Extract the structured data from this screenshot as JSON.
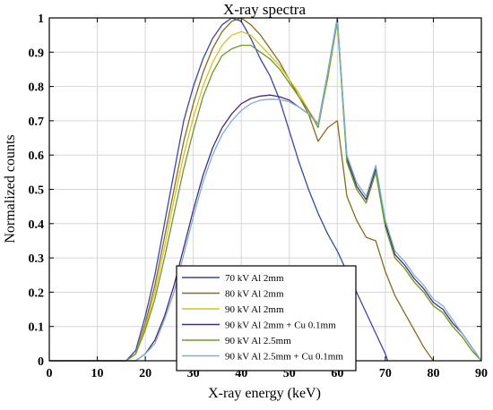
{
  "chart_data": {
    "type": "line",
    "title": "X-ray spectra",
    "xlabel": "X-ray energy (keV)",
    "ylabel": "Normalized counts",
    "xlim": [
      0,
      90
    ],
    "ylim": [
      0,
      1
    ],
    "xticks": [
      "0",
      "10",
      "20",
      "30",
      "40",
      "50",
      "60",
      "70",
      "80",
      "90"
    ],
    "yticks": [
      "0",
      "0.1",
      "0.2",
      "0.3",
      "0.4",
      "0.5",
      "0.6",
      "0.7",
      "0.8",
      "0.9",
      "1"
    ],
    "grid": true,
    "legend_position": "bottom-center",
    "series": [
      {
        "name": "70 kV Al 2mm",
        "color": "#3a46a8",
        "points": [
          [
            0,
            0
          ],
          [
            16,
            0
          ],
          [
            18,
            0.03
          ],
          [
            20,
            0.13
          ],
          [
            22,
            0.25
          ],
          [
            24,
            0.4
          ],
          [
            26,
            0.55
          ],
          [
            28,
            0.7
          ],
          [
            30,
            0.8
          ],
          [
            32,
            0.88
          ],
          [
            34,
            0.94
          ],
          [
            36,
            0.98
          ],
          [
            38,
            1.0
          ],
          [
            40,
            0.99
          ],
          [
            42,
            0.94
          ],
          [
            44,
            0.88
          ],
          [
            46,
            0.83
          ],
          [
            48,
            0.76
          ],
          [
            50,
            0.67
          ],
          [
            52,
            0.58
          ],
          [
            54,
            0.5
          ],
          [
            56,
            0.43
          ],
          [
            58,
            0.37
          ],
          [
            60,
            0.32
          ],
          [
            62,
            0.26
          ],
          [
            64,
            0.2
          ],
          [
            66,
            0.14
          ],
          [
            68,
            0.08
          ],
          [
            70,
            0.02
          ],
          [
            70.5,
            0
          ]
        ]
      },
      {
        "name": "80 kV Al 2mm",
        "color": "#8a6a1e",
        "points": [
          [
            0,
            0
          ],
          [
            16,
            0
          ],
          [
            18,
            0.02
          ],
          [
            20,
            0.11
          ],
          [
            22,
            0.22
          ],
          [
            24,
            0.36
          ],
          [
            26,
            0.5
          ],
          [
            28,
            0.64
          ],
          [
            30,
            0.75
          ],
          [
            32,
            0.84
          ],
          [
            34,
            0.91
          ],
          [
            36,
            0.96
          ],
          [
            38,
            0.99
          ],
          [
            40,
            1.0
          ],
          [
            42,
            0.98
          ],
          [
            44,
            0.95
          ],
          [
            46,
            0.91
          ],
          [
            48,
            0.87
          ],
          [
            50,
            0.82
          ],
          [
            52,
            0.77
          ],
          [
            54,
            0.72
          ],
          [
            56,
            0.64
          ],
          [
            58,
            0.68
          ],
          [
            60,
            0.7
          ],
          [
            62,
            0.48
          ],
          [
            64,
            0.41
          ],
          [
            66,
            0.36
          ],
          [
            68,
            0.35
          ],
          [
            70,
            0.26
          ],
          [
            72,
            0.19
          ],
          [
            74,
            0.14
          ],
          [
            76,
            0.09
          ],
          [
            78,
            0.04
          ],
          [
            80,
            0
          ]
        ]
      },
      {
        "name": "90 kV Al 2mm",
        "color": "#d8c020",
        "points": [
          [
            0,
            0
          ],
          [
            16,
            0
          ],
          [
            18,
            0.02
          ],
          [
            20,
            0.1
          ],
          [
            22,
            0.2
          ],
          [
            24,
            0.33
          ],
          [
            26,
            0.47
          ],
          [
            28,
            0.6
          ],
          [
            30,
            0.71
          ],
          [
            32,
            0.8
          ],
          [
            34,
            0.87
          ],
          [
            36,
            0.92
          ],
          [
            38,
            0.95
          ],
          [
            40,
            0.96
          ],
          [
            42,
            0.95
          ],
          [
            44,
            0.92
          ],
          [
            46,
            0.89
          ],
          [
            48,
            0.86
          ],
          [
            50,
            0.82
          ],
          [
            52,
            0.78
          ],
          [
            54,
            0.73
          ],
          [
            56,
            0.69
          ],
          [
            58,
            0.82
          ],
          [
            60,
            0.99
          ],
          [
            62,
            0.58
          ],
          [
            64,
            0.5
          ],
          [
            66,
            0.46
          ],
          [
            68,
            0.55
          ],
          [
            70,
            0.39
          ],
          [
            72,
            0.3
          ],
          [
            74,
            0.27
          ],
          [
            76,
            0.23
          ],
          [
            78,
            0.2
          ],
          [
            80,
            0.16
          ],
          [
            82,
            0.14
          ],
          [
            84,
            0.1
          ],
          [
            86,
            0.07
          ],
          [
            88,
            0.03
          ],
          [
            90,
            0
          ]
        ]
      },
      {
        "name": "90 kV Al 2mm + Cu 0.1mm",
        "color": "#4a2a78",
        "points": [
          [
            0,
            0
          ],
          [
            18,
            0
          ],
          [
            20,
            0.02
          ],
          [
            22,
            0.06
          ],
          [
            24,
            0.13
          ],
          [
            26,
            0.22
          ],
          [
            28,
            0.33
          ],
          [
            30,
            0.44
          ],
          [
            32,
            0.54
          ],
          [
            34,
            0.62
          ],
          [
            36,
            0.68
          ],
          [
            38,
            0.72
          ],
          [
            40,
            0.75
          ],
          [
            42,
            0.765
          ],
          [
            44,
            0.772
          ],
          [
            46,
            0.775
          ],
          [
            48,
            0.77
          ],
          [
            50,
            0.76
          ],
          [
            52,
            0.74
          ],
          [
            54,
            0.72
          ],
          [
            56,
            0.69
          ],
          [
            58,
            0.84
          ],
          [
            60,
            1.0
          ],
          [
            62,
            0.59
          ],
          [
            64,
            0.51
          ],
          [
            66,
            0.47
          ],
          [
            68,
            0.56
          ],
          [
            70,
            0.4
          ],
          [
            72,
            0.31
          ],
          [
            74,
            0.28
          ],
          [
            76,
            0.24
          ],
          [
            78,
            0.21
          ],
          [
            80,
            0.17
          ],
          [
            82,
            0.15
          ],
          [
            84,
            0.11
          ],
          [
            86,
            0.08
          ],
          [
            88,
            0.04
          ],
          [
            90,
            0
          ]
        ]
      },
      {
        "name": "90 kV Al 2.5mm",
        "color": "#6a9a28",
        "points": [
          [
            0,
            0
          ],
          [
            16,
            0
          ],
          [
            18,
            0.02
          ],
          [
            20,
            0.09
          ],
          [
            22,
            0.18
          ],
          [
            24,
            0.3
          ],
          [
            26,
            0.43
          ],
          [
            28,
            0.56
          ],
          [
            30,
            0.67
          ],
          [
            32,
            0.77
          ],
          [
            34,
            0.84
          ],
          [
            36,
            0.89
          ],
          [
            38,
            0.91
          ],
          [
            40,
            0.92
          ],
          [
            42,
            0.92
          ],
          [
            44,
            0.9
          ],
          [
            46,
            0.88
          ],
          [
            48,
            0.85
          ],
          [
            50,
            0.81
          ],
          [
            52,
            0.77
          ],
          [
            54,
            0.73
          ],
          [
            56,
            0.68
          ],
          [
            58,
            0.83
          ],
          [
            60,
            0.99
          ],
          [
            62,
            0.58
          ],
          [
            64,
            0.5
          ],
          [
            66,
            0.46
          ],
          [
            68,
            0.55
          ],
          [
            70,
            0.39
          ],
          [
            72,
            0.3
          ],
          [
            74,
            0.27
          ],
          [
            76,
            0.23
          ],
          [
            78,
            0.2
          ],
          [
            80,
            0.16
          ],
          [
            82,
            0.14
          ],
          [
            84,
            0.1
          ],
          [
            86,
            0.07
          ],
          [
            88,
            0.03
          ],
          [
            90,
            0
          ]
        ]
      },
      {
        "name": "90 kV Al 2.5mm + Cu 0.1mm",
        "color": "#7ab0d8",
        "points": [
          [
            0,
            0
          ],
          [
            18,
            0
          ],
          [
            20,
            0.02
          ],
          [
            22,
            0.05
          ],
          [
            24,
            0.12
          ],
          [
            26,
            0.2
          ],
          [
            28,
            0.31
          ],
          [
            30,
            0.42
          ],
          [
            32,
            0.52
          ],
          [
            34,
            0.6
          ],
          [
            36,
            0.66
          ],
          [
            38,
            0.7
          ],
          [
            40,
            0.73
          ],
          [
            42,
            0.75
          ],
          [
            44,
            0.76
          ],
          [
            46,
            0.763
          ],
          [
            48,
            0.762
          ],
          [
            50,
            0.755
          ],
          [
            52,
            0.74
          ],
          [
            54,
            0.72
          ],
          [
            56,
            0.69
          ],
          [
            58,
            0.84
          ],
          [
            60,
            1.0
          ],
          [
            62,
            0.6
          ],
          [
            64,
            0.52
          ],
          [
            66,
            0.48
          ],
          [
            68,
            0.57
          ],
          [
            70,
            0.41
          ],
          [
            72,
            0.32
          ],
          [
            74,
            0.29
          ],
          [
            76,
            0.25
          ],
          [
            78,
            0.22
          ],
          [
            80,
            0.18
          ],
          [
            82,
            0.16
          ],
          [
            84,
            0.12
          ],
          [
            86,
            0.08
          ],
          [
            88,
            0.04
          ],
          [
            90,
            0
          ]
        ]
      }
    ]
  }
}
